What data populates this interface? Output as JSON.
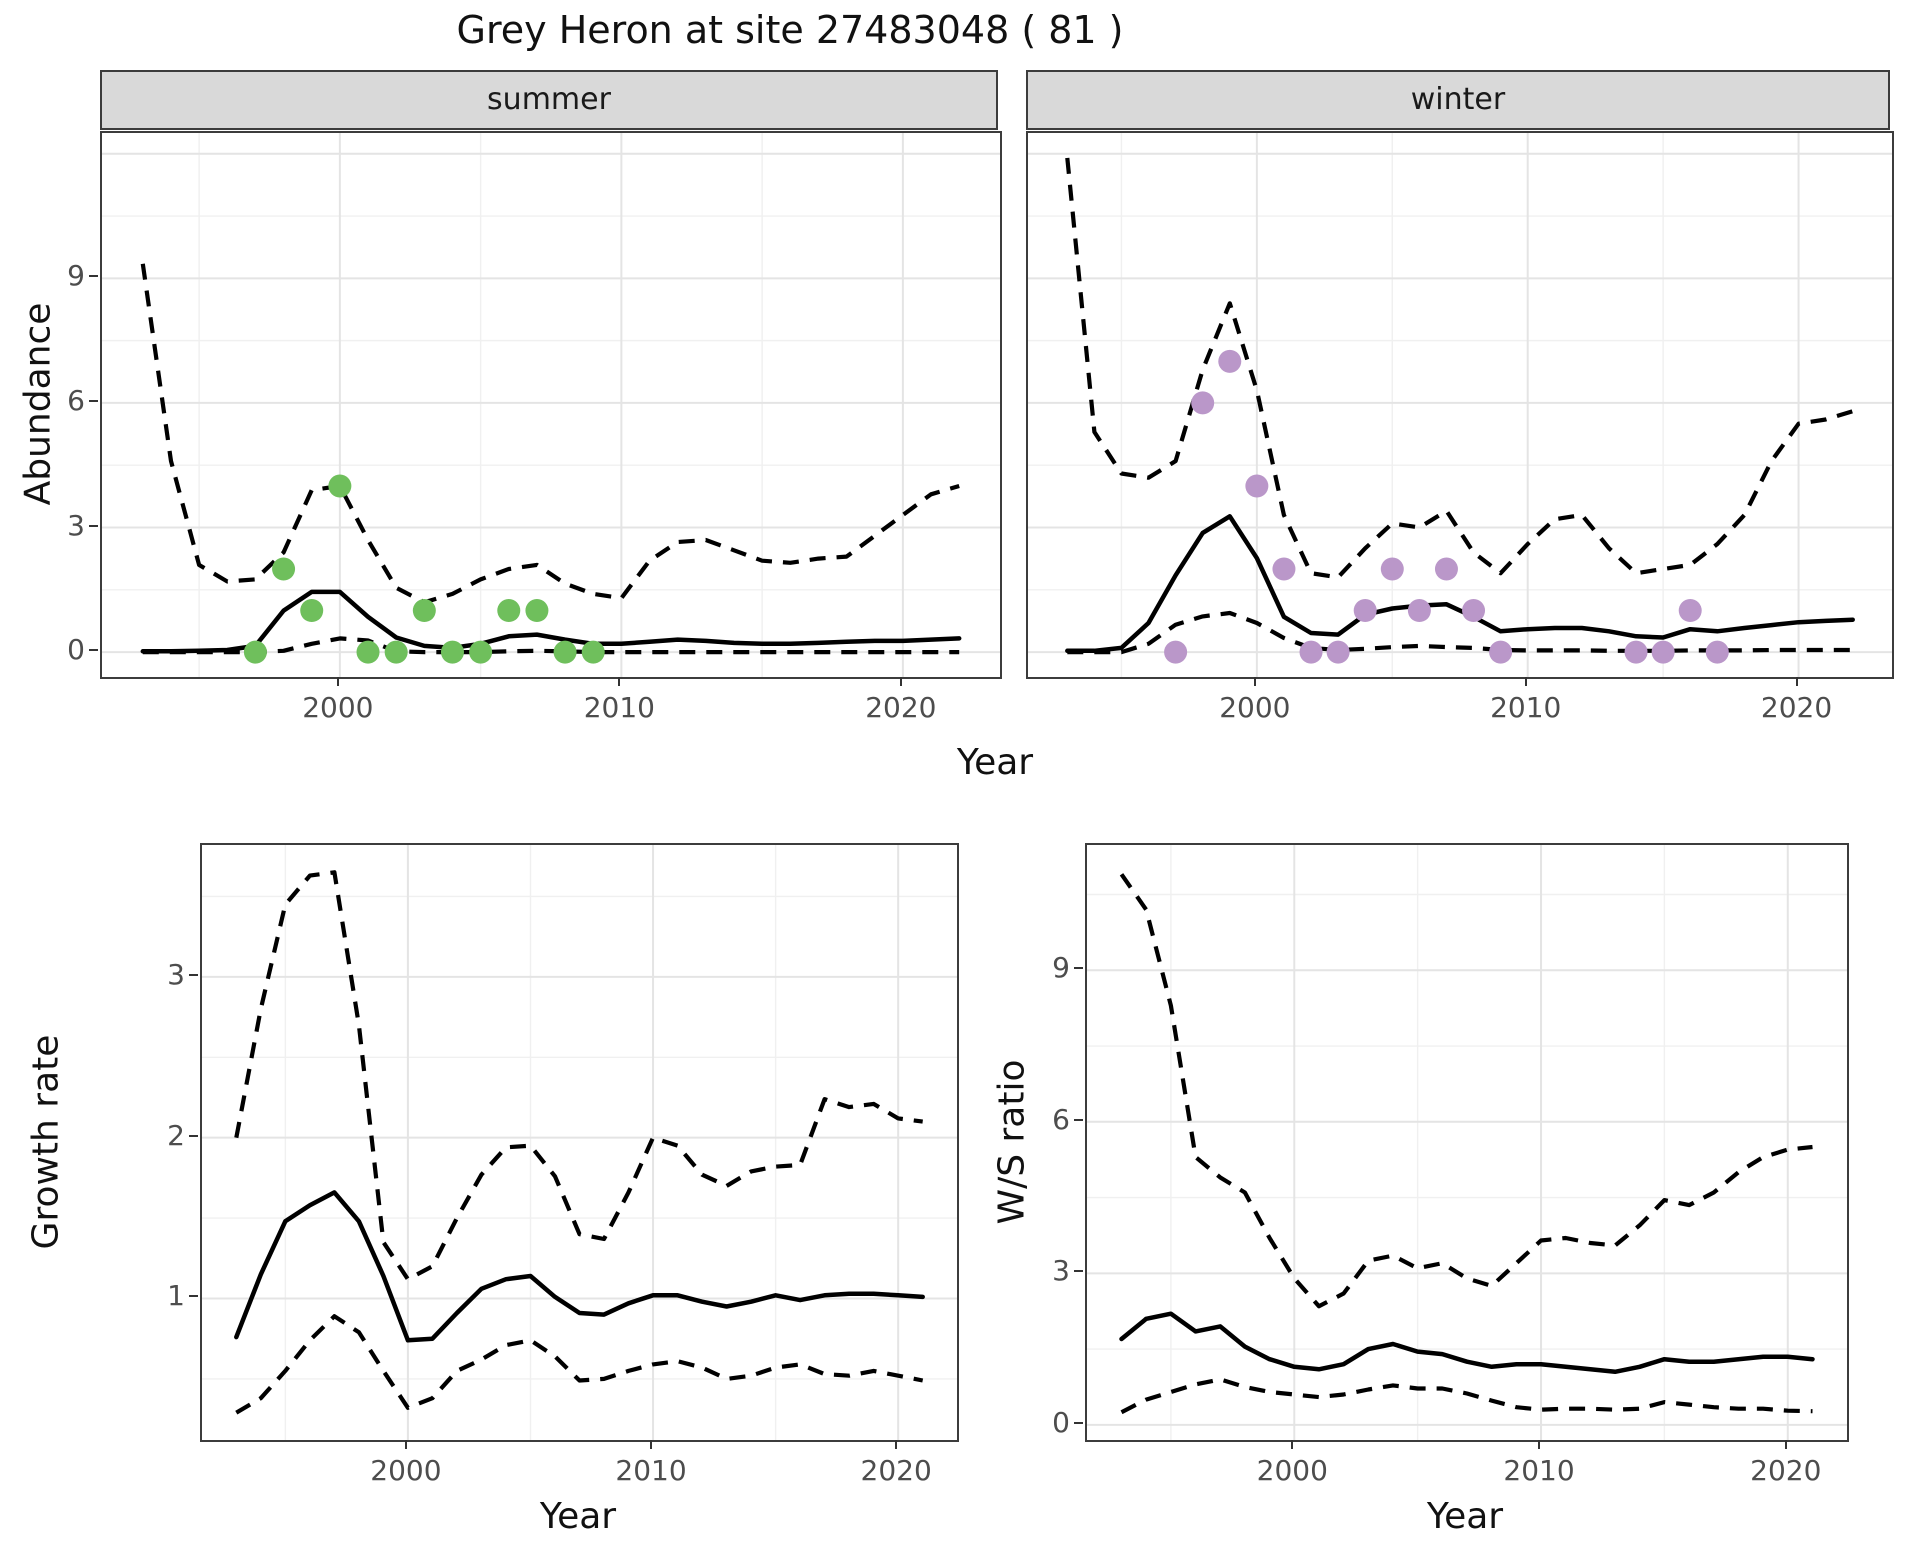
{
  "title": "Grey Heron at site 27483048 ( 81 )",
  "facets": {
    "summer": "summer",
    "winter": "winter"
  },
  "axis_titles": {
    "x": "Year",
    "abundance": "Abundance",
    "growth": "Growth rate",
    "ratio": "W/S ratio"
  },
  "colors": {
    "summer_points": "#6FBF5C",
    "winter_points": "#BA97C9",
    "line": "#000000",
    "grid_major": "#E4E4E4",
    "grid_minor": "#F0F0F0",
    "strip_bg": "#D9D9D9",
    "panel_border": "#3C3C3C",
    "tick_text": "#4D4D4D"
  },
  "chart_data": [
    {
      "id": "abundance-summer",
      "type": "line",
      "facet": "summer",
      "xlabel": "Year",
      "ylabel": "Abundance",
      "xlim": [
        1991.55,
        2023.45
      ],
      "ylim": [
        -0.6,
        12.5
      ],
      "x_ticks": [
        2000,
        2010,
        2020
      ],
      "y_ticks": [
        0,
        3,
        6,
        9
      ],
      "y_grid": [
        0,
        3,
        6,
        9,
        12
      ],
      "years": [
        1993,
        1994,
        1995,
        1996,
        1997,
        1998,
        1999,
        2000,
        2001,
        2002,
        2003,
        2004,
        2005,
        2006,
        2007,
        2008,
        2009,
        2010,
        2011,
        2012,
        2013,
        2014,
        2015,
        2016,
        2017,
        2018,
        2019,
        2020,
        2021,
        2022
      ],
      "series": [
        {
          "name": "upper95",
          "style": "dashed",
          "values": [
            9.35,
            4.6,
            2.1,
            1.7,
            1.75,
            2.4,
            3.9,
            4.0,
            2.7,
            1.55,
            1.2,
            1.4,
            1.75,
            2.0,
            2.1,
            1.65,
            1.4,
            1.3,
            2.2,
            2.65,
            2.7,
            2.45,
            2.2,
            2.15,
            2.25,
            2.3,
            2.8,
            3.3,
            3.8,
            4.0
          ]
        },
        {
          "name": "median",
          "style": "solid",
          "values": [
            0.02,
            0.02,
            0.03,
            0.05,
            0.15,
            1.0,
            1.45,
            1.45,
            0.85,
            0.35,
            0.15,
            0.1,
            0.2,
            0.38,
            0.42,
            0.3,
            0.2,
            0.2,
            0.25,
            0.3,
            0.27,
            0.22,
            0.2,
            0.2,
            0.22,
            0.25,
            0.27,
            0.27,
            0.3,
            0.33
          ]
        },
        {
          "name": "lower95",
          "style": "dashed",
          "values": [
            0,
            0,
            0,
            0,
            0,
            0.03,
            0.2,
            0.33,
            0.28,
            0.02,
            0,
            0,
            0,
            0.02,
            0.03,
            0.02,
            0,
            0,
            0,
            0,
            0,
            0,
            0,
            0,
            0,
            0,
            0,
            0,
            0,
            0
          ]
        }
      ],
      "observations": {
        "color_key": "summer_points",
        "points": [
          [
            1997,
            0
          ],
          [
            1998,
            2
          ],
          [
            1999,
            1
          ],
          [
            2000,
            4
          ],
          [
            2001,
            0
          ],
          [
            2002,
            0
          ],
          [
            2003,
            1
          ],
          [
            2004,
            0
          ],
          [
            2005,
            0
          ],
          [
            2006,
            1
          ],
          [
            2007,
            1
          ],
          [
            2008,
            0
          ],
          [
            2009,
            0
          ]
        ]
      }
    },
    {
      "id": "abundance-winter",
      "type": "line",
      "facet": "winter",
      "xlabel": "Year",
      "ylabel": "Abundance",
      "xlim": [
        1991.55,
        2023.45
      ],
      "ylim": [
        -0.6,
        12.5
      ],
      "x_ticks": [
        2000,
        2010,
        2020
      ],
      "y_ticks": [
        0,
        3,
        6,
        9
      ],
      "y_grid": [
        0,
        3,
        6,
        9,
        12
      ],
      "years": [
        1993,
        1994,
        1995,
        1996,
        1997,
        1998,
        1999,
        2000,
        2001,
        2002,
        2003,
        2004,
        2005,
        2006,
        2007,
        2008,
        2009,
        2010,
        2011,
        2012,
        2013,
        2014,
        2015,
        2016,
        2017,
        2018,
        2019,
        2020,
        2021,
        2022
      ],
      "series": [
        {
          "name": "upper95",
          "style": "dashed",
          "values": [
            11.9,
            5.3,
            4.3,
            4.2,
            4.6,
            6.8,
            8.4,
            6.3,
            3.3,
            1.9,
            1.8,
            2.5,
            3.1,
            3.0,
            3.4,
            2.4,
            1.9,
            2.6,
            3.2,
            3.3,
            2.5,
            1.9,
            2.0,
            2.1,
            2.6,
            3.3,
            4.6,
            5.5,
            5.6,
            5.8
          ]
        },
        {
          "name": "median",
          "style": "solid",
          "values": [
            0.03,
            0.03,
            0.1,
            0.7,
            1.85,
            2.87,
            3.27,
            2.26,
            0.85,
            0.46,
            0.42,
            0.9,
            1.05,
            1.12,
            1.15,
            0.85,
            0.5,
            0.55,
            0.58,
            0.58,
            0.5,
            0.38,
            0.35,
            0.55,
            0.5,
            0.58,
            0.65,
            0.72,
            0.75,
            0.78
          ]
        },
        {
          "name": "lower95",
          "style": "dashed",
          "values": [
            0,
            0,
            0,
            0.2,
            0.66,
            0.86,
            0.94,
            0.7,
            0.34,
            0.1,
            0.05,
            0.08,
            0.12,
            0.15,
            0.12,
            0.1,
            0.05,
            0.04,
            0.04,
            0.04,
            0.03,
            0.03,
            0.03,
            0.04,
            0.04,
            0.04,
            0.05,
            0.05,
            0.05,
            0.05
          ]
        }
      ],
      "observations": {
        "color_key": "winter_points",
        "points": [
          [
            1997,
            0
          ],
          [
            1998,
            6
          ],
          [
            1999,
            7
          ],
          [
            2000,
            4
          ],
          [
            2001,
            2
          ],
          [
            2002,
            0
          ],
          [
            2003,
            0
          ],
          [
            2004,
            1
          ],
          [
            2005,
            2
          ],
          [
            2006,
            1
          ],
          [
            2007,
            2
          ],
          [
            2008,
            1
          ],
          [
            2009,
            0
          ],
          [
            2014,
            0
          ],
          [
            2015,
            0
          ],
          [
            2016,
            1
          ],
          [
            2017,
            0
          ]
        ]
      }
    },
    {
      "id": "growth-rate",
      "type": "line",
      "facet": null,
      "xlabel": "Year",
      "ylabel": "Growth rate",
      "xlim": [
        1991.6,
        2022.4
      ],
      "ylim": [
        0.12,
        3.82
      ],
      "x_ticks": [
        2000,
        2010,
        2020
      ],
      "y_ticks": [
        1,
        2,
        3
      ],
      "y_grid": [
        1,
        2,
        3
      ],
      "years": [
        1993,
        1994,
        1995,
        1996,
        1997,
        1998,
        1999,
        2000,
        2001,
        2002,
        2003,
        2004,
        2005,
        2006,
        2007,
        2008,
        2009,
        2010,
        2011,
        2012,
        2013,
        2014,
        2015,
        2016,
        2017,
        2018,
        2019,
        2020,
        2021
      ],
      "series": [
        {
          "name": "upper95",
          "style": "dashed",
          "values": [
            2.0,
            2.8,
            3.45,
            3.63,
            3.65,
            2.7,
            1.35,
            1.12,
            1.2,
            1.5,
            1.77,
            1.94,
            1.95,
            1.76,
            1.4,
            1.37,
            1.66,
            2.0,
            1.95,
            1.77,
            1.7,
            1.79,
            1.82,
            1.83,
            2.24,
            2.19,
            2.21,
            2.12,
            2.1
          ]
        },
        {
          "name": "median",
          "style": "solid",
          "values": [
            0.76,
            1.15,
            1.48,
            1.58,
            1.66,
            1.48,
            1.14,
            0.74,
            0.75,
            0.91,
            1.06,
            1.12,
            1.14,
            1.01,
            0.91,
            0.9,
            0.97,
            1.02,
            1.02,
            0.98,
            0.95,
            0.98,
            1.02,
            0.99,
            1.02,
            1.03,
            1.03,
            1.02,
            1.01
          ]
        },
        {
          "name": "lower95",
          "style": "dashed",
          "values": [
            0.29,
            0.38,
            0.55,
            0.74,
            0.89,
            0.79,
            0.55,
            0.32,
            0.38,
            0.55,
            0.62,
            0.71,
            0.74,
            0.64,
            0.49,
            0.5,
            0.55,
            0.59,
            0.61,
            0.57,
            0.5,
            0.52,
            0.57,
            0.59,
            0.53,
            0.52,
            0.55,
            0.52,
            0.49
          ]
        }
      ],
      "observations": null
    },
    {
      "id": "ws-ratio",
      "type": "line",
      "facet": null,
      "xlabel": "Year",
      "ylabel": "W/S ratio",
      "xlim": [
        1991.6,
        2022.4
      ],
      "ylim": [
        -0.3,
        11.48
      ],
      "x_ticks": [
        2000,
        2010,
        2020
      ],
      "y_ticks": [
        0,
        3,
        6,
        9
      ],
      "y_grid": [
        0,
        3,
        6,
        9
      ],
      "years": [
        1993,
        1994,
        1995,
        1996,
        1997,
        1998,
        1999,
        2000,
        2001,
        2002,
        2003,
        2004,
        2005,
        2006,
        2007,
        2008,
        2009,
        2010,
        2011,
        2012,
        2013,
        2014,
        2015,
        2016,
        2017,
        2018,
        2019,
        2020,
        2021
      ],
      "series": [
        {
          "name": "upper95",
          "style": "dashed",
          "values": [
            10.9,
            10.2,
            8.3,
            5.3,
            4.9,
            4.6,
            3.7,
            2.9,
            2.35,
            2.6,
            3.25,
            3.35,
            3.1,
            3.2,
            2.9,
            2.75,
            3.2,
            3.65,
            3.7,
            3.6,
            3.55,
            3.95,
            4.45,
            4.35,
            4.6,
            5.0,
            5.3,
            5.45,
            5.5
          ]
        },
        {
          "name": "median",
          "style": "solid",
          "values": [
            1.7,
            2.1,
            2.2,
            1.85,
            1.95,
            1.55,
            1.3,
            1.15,
            1.1,
            1.2,
            1.5,
            1.6,
            1.45,
            1.4,
            1.25,
            1.15,
            1.2,
            1.2,
            1.15,
            1.1,
            1.05,
            1.15,
            1.3,
            1.25,
            1.25,
            1.3,
            1.35,
            1.35,
            1.3
          ]
        },
        {
          "name": "lower95",
          "style": "dashed",
          "values": [
            0.25,
            0.5,
            0.65,
            0.8,
            0.9,
            0.75,
            0.65,
            0.6,
            0.55,
            0.6,
            0.7,
            0.78,
            0.72,
            0.72,
            0.62,
            0.48,
            0.35,
            0.3,
            0.32,
            0.32,
            0.3,
            0.32,
            0.45,
            0.4,
            0.35,
            0.32,
            0.32,
            0.28,
            0.27
          ]
        }
      ],
      "observations": null
    }
  ]
}
